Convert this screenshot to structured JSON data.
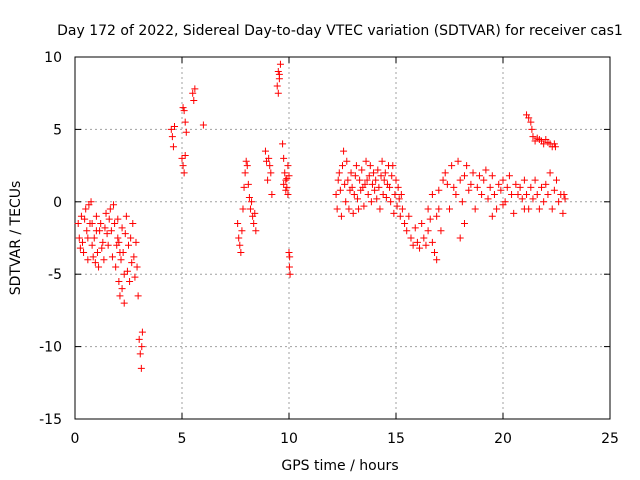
{
  "chart_data": {
    "type": "scatter",
    "title": "Day 172 of 2022, Sidereal Day-to-day VTEC variation (SDTVAR) for receiver cas1",
    "xlabel": "GPS time / hours",
    "ylabel": "SDTVAR / TECUs",
    "xlim": [
      0,
      25
    ],
    "ylim": [
      -15,
      10
    ],
    "xticks": [
      0,
      5,
      10,
      15,
      20,
      25
    ],
    "yticks": [
      -15,
      -10,
      -5,
      0,
      5,
      10
    ],
    "xtick_labels": [
      "0",
      "5",
      "10",
      "15",
      "20",
      "25"
    ],
    "ytick_labels": [
      "-15",
      "-10",
      "-5",
      "0",
      "5",
      "10"
    ],
    "grid": true,
    "marker": "+",
    "color": "#ff0000",
    "series": [
      {
        "name": "SDTVAR",
        "points": [
          [
            0.15,
            -1.5
          ],
          [
            0.2,
            -2.5
          ],
          [
            0.25,
            -3.2
          ],
          [
            0.3,
            -1.0
          ],
          [
            0.35,
            -2.8
          ],
          [
            0.4,
            -3.5
          ],
          [
            0.45,
            -1.2
          ],
          [
            0.5,
            -0.5
          ],
          [
            0.55,
            -2.0
          ],
          [
            0.6,
            -4.0
          ],
          [
            0.65,
            -0.2
          ],
          [
            0.7,
            -1.5
          ],
          [
            0.75,
            0.0
          ],
          [
            0.8,
            -3.0
          ],
          [
            0.85,
            -3.8
          ],
          [
            0.9,
            -2.5
          ],
          [
            0.95,
            -4.2
          ],
          [
            1.0,
            -1.0
          ],
          [
            1.05,
            -3.5
          ],
          [
            1.1,
            -4.5
          ],
          [
            1.15,
            -2.0
          ],
          [
            1.2,
            -1.5
          ],
          [
            1.25,
            -3.2
          ],
          [
            1.3,
            -2.8
          ],
          [
            1.35,
            -4.0
          ],
          [
            1.4,
            -1.8
          ],
          [
            1.45,
            -0.8
          ],
          [
            1.5,
            -2.2
          ],
          [
            1.55,
            -3.0
          ],
          [
            1.6,
            -1.2
          ],
          [
            1.65,
            -0.5
          ],
          [
            1.7,
            -2.0
          ],
          [
            1.75,
            -3.8
          ],
          [
            1.8,
            -0.2
          ],
          [
            1.85,
            -1.5
          ],
          [
            1.9,
            -4.5
          ],
          [
            1.95,
            -3.0
          ],
          [
            2.0,
            -2.5
          ],
          [
            2.05,
            -5.5
          ],
          [
            2.1,
            -6.5
          ],
          [
            2.15,
            -4.0
          ],
          [
            2.2,
            -1.8
          ],
          [
            2.25,
            -3.5
          ],
          [
            2.3,
            -5.0
          ],
          [
            2.35,
            -2.2
          ],
          [
            2.4,
            -1.0
          ],
          [
            2.45,
            -4.8
          ],
          [
            2.5,
            -3.0
          ],
          [
            2.55,
            -5.5
          ],
          [
            2.6,
            -2.5
          ],
          [
            2.65,
            -4.2
          ],
          [
            2.7,
            -1.5
          ],
          [
            2.75,
            -3.8
          ],
          [
            2.8,
            -5.2
          ],
          [
            2.85,
            -2.8
          ],
          [
            2.9,
            -4.5
          ],
          [
            2.95,
            -6.5
          ],
          [
            3.0,
            -9.5
          ],
          [
            3.05,
            -10.5
          ],
          [
            3.1,
            -11.5
          ],
          [
            3.12,
            -10.0
          ],
          [
            3.15,
            -9.0
          ],
          [
            2.0,
            -1.2
          ],
          [
            2.05,
            -2.8
          ],
          [
            2.1,
            -3.5
          ],
          [
            2.2,
            -6.0
          ],
          [
            2.3,
            -7.0
          ],
          [
            1.0,
            -2.0
          ],
          [
            0.8,
            -1.5
          ],
          [
            0.6,
            -2.5
          ],
          [
            4.5,
            5.0
          ],
          [
            4.55,
            4.5
          ],
          [
            4.6,
            3.8
          ],
          [
            4.65,
            5.2
          ],
          [
            5.0,
            3.0
          ],
          [
            5.05,
            2.5
          ],
          [
            5.1,
            2.0
          ],
          [
            5.15,
            3.2
          ],
          [
            5.05,
            6.5
          ],
          [
            5.1,
            6.3
          ],
          [
            5.15,
            5.5
          ],
          [
            5.2,
            4.8
          ],
          [
            5.5,
            7.5
          ],
          [
            5.55,
            7.0
          ],
          [
            5.6,
            7.8
          ],
          [
            6.0,
            5.3
          ],
          [
            7.6,
            -1.5
          ],
          [
            7.65,
            -2.5
          ],
          [
            7.7,
            -3.0
          ],
          [
            7.75,
            -3.5
          ],
          [
            7.8,
            -2.0
          ],
          [
            7.85,
            -0.5
          ],
          [
            7.9,
            1.0
          ],
          [
            7.95,
            2.0
          ],
          [
            8.0,
            2.8
          ],
          [
            8.05,
            2.5
          ],
          [
            8.1,
            1.2
          ],
          [
            8.15,
            0.3
          ],
          [
            8.2,
            -0.5
          ],
          [
            8.25,
            0.0
          ],
          [
            8.3,
            -1.0
          ],
          [
            8.35,
            -1.5
          ],
          [
            8.4,
            -0.8
          ],
          [
            8.45,
            -2.0
          ],
          [
            8.9,
            3.5
          ],
          [
            8.95,
            2.8
          ],
          [
            9.0,
            1.5
          ],
          [
            9.05,
            3.0
          ],
          [
            9.1,
            2.5
          ],
          [
            9.15,
            2.0
          ],
          [
            9.2,
            0.5
          ],
          [
            9.5,
            9.0
          ],
          [
            9.55,
            8.5
          ],
          [
            9.6,
            9.5
          ],
          [
            9.45,
            8.0
          ],
          [
            9.5,
            7.5
          ],
          [
            9.55,
            8.8
          ],
          [
            9.7,
            4.0
          ],
          [
            9.75,
            3.0
          ],
          [
            9.8,
            2.0
          ],
          [
            9.85,
            1.5
          ],
          [
            9.9,
            1.0
          ],
          [
            9.95,
            2.5
          ],
          [
            10.0,
            1.8
          ],
          [
            9.75,
            1.2
          ],
          [
            9.85,
            0.8
          ],
          [
            9.9,
            1.6
          ],
          [
            9.95,
            0.5
          ],
          [
            10.0,
            -3.5
          ],
          [
            10.02,
            -4.5
          ],
          [
            10.05,
            -5.0
          ],
          [
            10.03,
            -3.8
          ],
          [
            12.2,
            0.5
          ],
          [
            12.25,
            -0.5
          ],
          [
            12.3,
            1.5
          ],
          [
            12.35,
            2.0
          ],
          [
            12.4,
            0.8
          ],
          [
            12.45,
            -1.0
          ],
          [
            12.5,
            2.5
          ],
          [
            12.55,
            3.5
          ],
          [
            12.6,
            1.2
          ],
          [
            12.65,
            0.0
          ],
          [
            12.7,
            2.8
          ],
          [
            12.75,
            1.5
          ],
          [
            12.8,
            -0.5
          ],
          [
            12.85,
            0.8
          ],
          [
            12.9,
            2.0
          ],
          [
            12.95,
            1.0
          ],
          [
            13.0,
            -0.8
          ],
          [
            13.05,
            0.5
          ],
          [
            13.1,
            1.8
          ],
          [
            13.15,
            2.5
          ],
          [
            13.2,
            0.2
          ],
          [
            13.25,
            -0.5
          ],
          [
            13.3,
            1.5
          ],
          [
            13.35,
            0.8
          ],
          [
            13.4,
            2.2
          ],
          [
            13.45,
            1.0
          ],
          [
            13.5,
            -0.3
          ],
          [
            13.55,
            1.2
          ],
          [
            13.6,
            2.8
          ],
          [
            13.65,
            1.5
          ],
          [
            13.7,
            0.5
          ],
          [
            13.75,
            1.8
          ],
          [
            13.8,
            2.5
          ],
          [
            13.85,
            0.0
          ],
          [
            13.9,
            1.2
          ],
          [
            13.95,
            2.0
          ],
          [
            14.0,
            0.8
          ],
          [
            14.05,
            1.5
          ],
          [
            14.1,
            0.2
          ],
          [
            14.15,
            2.2
          ],
          [
            14.2,
            1.0
          ],
          [
            14.25,
            -0.5
          ],
          [
            14.3,
            1.8
          ],
          [
            14.35,
            2.8
          ],
          [
            14.4,
            0.5
          ],
          [
            14.45,
            1.5
          ],
          [
            14.5,
            2.0
          ],
          [
            14.55,
            0.3
          ],
          [
            14.6,
            1.2
          ],
          [
            14.65,
            2.5
          ],
          [
            14.7,
            1.0
          ],
          [
            14.75,
            0.0
          ],
          [
            14.8,
            1.8
          ],
          [
            14.85,
            2.5
          ],
          [
            14.9,
            -0.8
          ],
          [
            14.95,
            0.5
          ],
          [
            15.0,
            1.5
          ],
          [
            15.05,
            -0.3
          ],
          [
            15.1,
            1.0
          ],
          [
            15.15,
            0.2
          ],
          [
            15.2,
            -1.0
          ],
          [
            15.25,
            0.5
          ],
          [
            15.3,
            -0.5
          ],
          [
            15.4,
            -1.5
          ],
          [
            15.5,
            -2.0
          ],
          [
            15.6,
            -1.0
          ],
          [
            15.7,
            -2.5
          ],
          [
            15.8,
            -3.0
          ],
          [
            15.9,
            -1.8
          ],
          [
            16.0,
            -2.8
          ],
          [
            16.1,
            -3.2
          ],
          [
            16.2,
            -1.5
          ],
          [
            16.3,
            -2.5
          ],
          [
            16.4,
            -3.0
          ],
          [
            16.5,
            -2.0
          ],
          [
            16.6,
            -1.2
          ],
          [
            16.7,
            -2.8
          ],
          [
            16.8,
            -3.5
          ],
          [
            16.9,
            -1.0
          ],
          [
            17.0,
            -0.5
          ],
          [
            17.1,
            -2.0
          ],
          [
            16.5,
            -0.5
          ],
          [
            16.7,
            0.5
          ],
          [
            16.9,
            -4.0
          ],
          [
            17.0,
            0.8
          ],
          [
            17.2,
            1.5
          ],
          [
            17.3,
            2.0
          ],
          [
            17.4,
            1.2
          ],
          [
            17.5,
            -0.5
          ],
          [
            17.6,
            2.5
          ],
          [
            17.7,
            1.0
          ],
          [
            17.8,
            0.5
          ],
          [
            17.9,
            2.8
          ],
          [
            18.0,
            1.5
          ],
          [
            18.1,
            0.0
          ],
          [
            18.2,
            1.8
          ],
          [
            18.3,
            2.5
          ],
          [
            18.4,
            0.8
          ],
          [
            18.5,
            1.2
          ],
          [
            18.6,
            2.0
          ],
          [
            18.7,
            -0.5
          ],
          [
            18.8,
            1.0
          ],
          [
            18.9,
            1.8
          ],
          [
            19.0,
            0.5
          ],
          [
            19.1,
            1.5
          ],
          [
            19.2,
            2.2
          ],
          [
            19.3,
            0.2
          ],
          [
            19.4,
            1.0
          ],
          [
            19.5,
            1.8
          ],
          [
            19.6,
            0.5
          ],
          [
            19.7,
            -0.5
          ],
          [
            19.8,
            1.2
          ],
          [
            19.9,
            0.8
          ],
          [
            20.0,
            1.5
          ],
          [
            20.1,
            0.0
          ],
          [
            20.2,
            1.0
          ],
          [
            20.3,
            1.8
          ],
          [
            20.4,
            0.5
          ],
          [
            20.5,
            -0.8
          ],
          [
            20.6,
            1.2
          ],
          [
            20.7,
            0.5
          ],
          [
            20.8,
            1.0
          ],
          [
            20.9,
            0.2
          ],
          [
            21.0,
            1.5
          ],
          [
            21.1,
            0.5
          ],
          [
            21.2,
            -0.5
          ],
          [
            21.3,
            1.0
          ],
          [
            21.4,
            0.2
          ],
          [
            21.5,
            1.5
          ],
          [
            21.6,
            0.5
          ],
          [
            21.7,
            -0.5
          ],
          [
            21.8,
            1.0
          ],
          [
            21.9,
            0.0
          ],
          [
            22.0,
            1.2
          ],
          [
            22.1,
            0.5
          ],
          [
            22.2,
            2.0
          ],
          [
            22.3,
            -0.5
          ],
          [
            22.4,
            0.8
          ],
          [
            22.5,
            1.5
          ],
          [
            22.6,
            0.0
          ],
          [
            22.7,
            0.5
          ],
          [
            22.8,
            -0.8
          ],
          [
            22.85,
            0.5
          ],
          [
            22.9,
            0.2
          ],
          [
            18.2,
            -1.5
          ],
          [
            18.0,
            -2.5
          ],
          [
            19.5,
            -1.0
          ],
          [
            20.0,
            -0.2
          ],
          [
            21.0,
            -0.5
          ],
          [
            21.1,
            6.0
          ],
          [
            21.2,
            5.8
          ],
          [
            21.3,
            5.5
          ],
          [
            21.35,
            5.0
          ],
          [
            21.4,
            4.5
          ],
          [
            21.5,
            4.2
          ],
          [
            21.6,
            4.4
          ],
          [
            21.7,
            4.3
          ],
          [
            21.8,
            4.2
          ],
          [
            21.9,
            4.0
          ],
          [
            22.0,
            4.3
          ],
          [
            22.1,
            4.1
          ],
          [
            22.2,
            4.0
          ],
          [
            22.3,
            3.8
          ],
          [
            22.4,
            4.0
          ],
          [
            22.45,
            3.8
          ]
        ]
      }
    ]
  }
}
